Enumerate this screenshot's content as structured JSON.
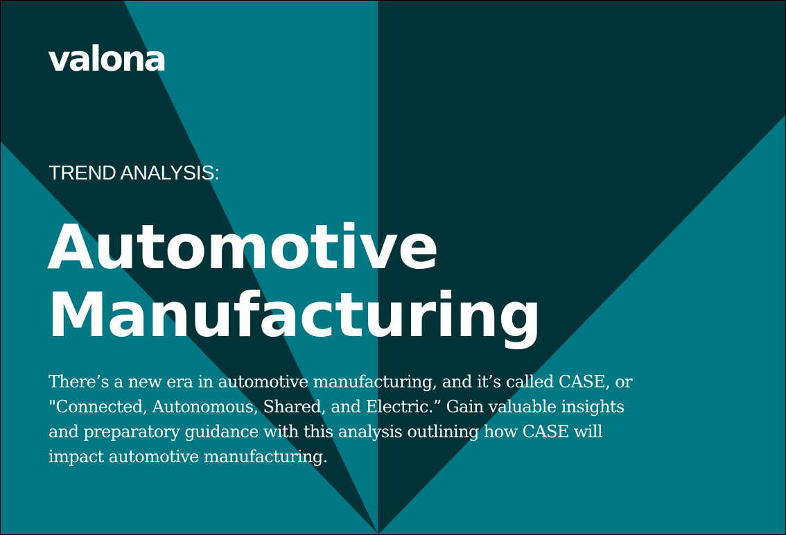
{
  "colors": {
    "background": "#007884",
    "dark": "#003238",
    "text": "#ffffff"
  },
  "logo": {
    "text": "valona"
  },
  "eyebrow": "TREND ANALYSIS:",
  "title": {
    "line1": "Automotive",
    "line2": "Manufacturing"
  },
  "description": "There’s a new era in automotive manufacturing, and it’s called CASE, or \"Connected, Autonomous, Shared, and Electric.” Gain valuable insights and preparatory guidance with this analysis outlining how CASE will impact automotive manufacturing."
}
